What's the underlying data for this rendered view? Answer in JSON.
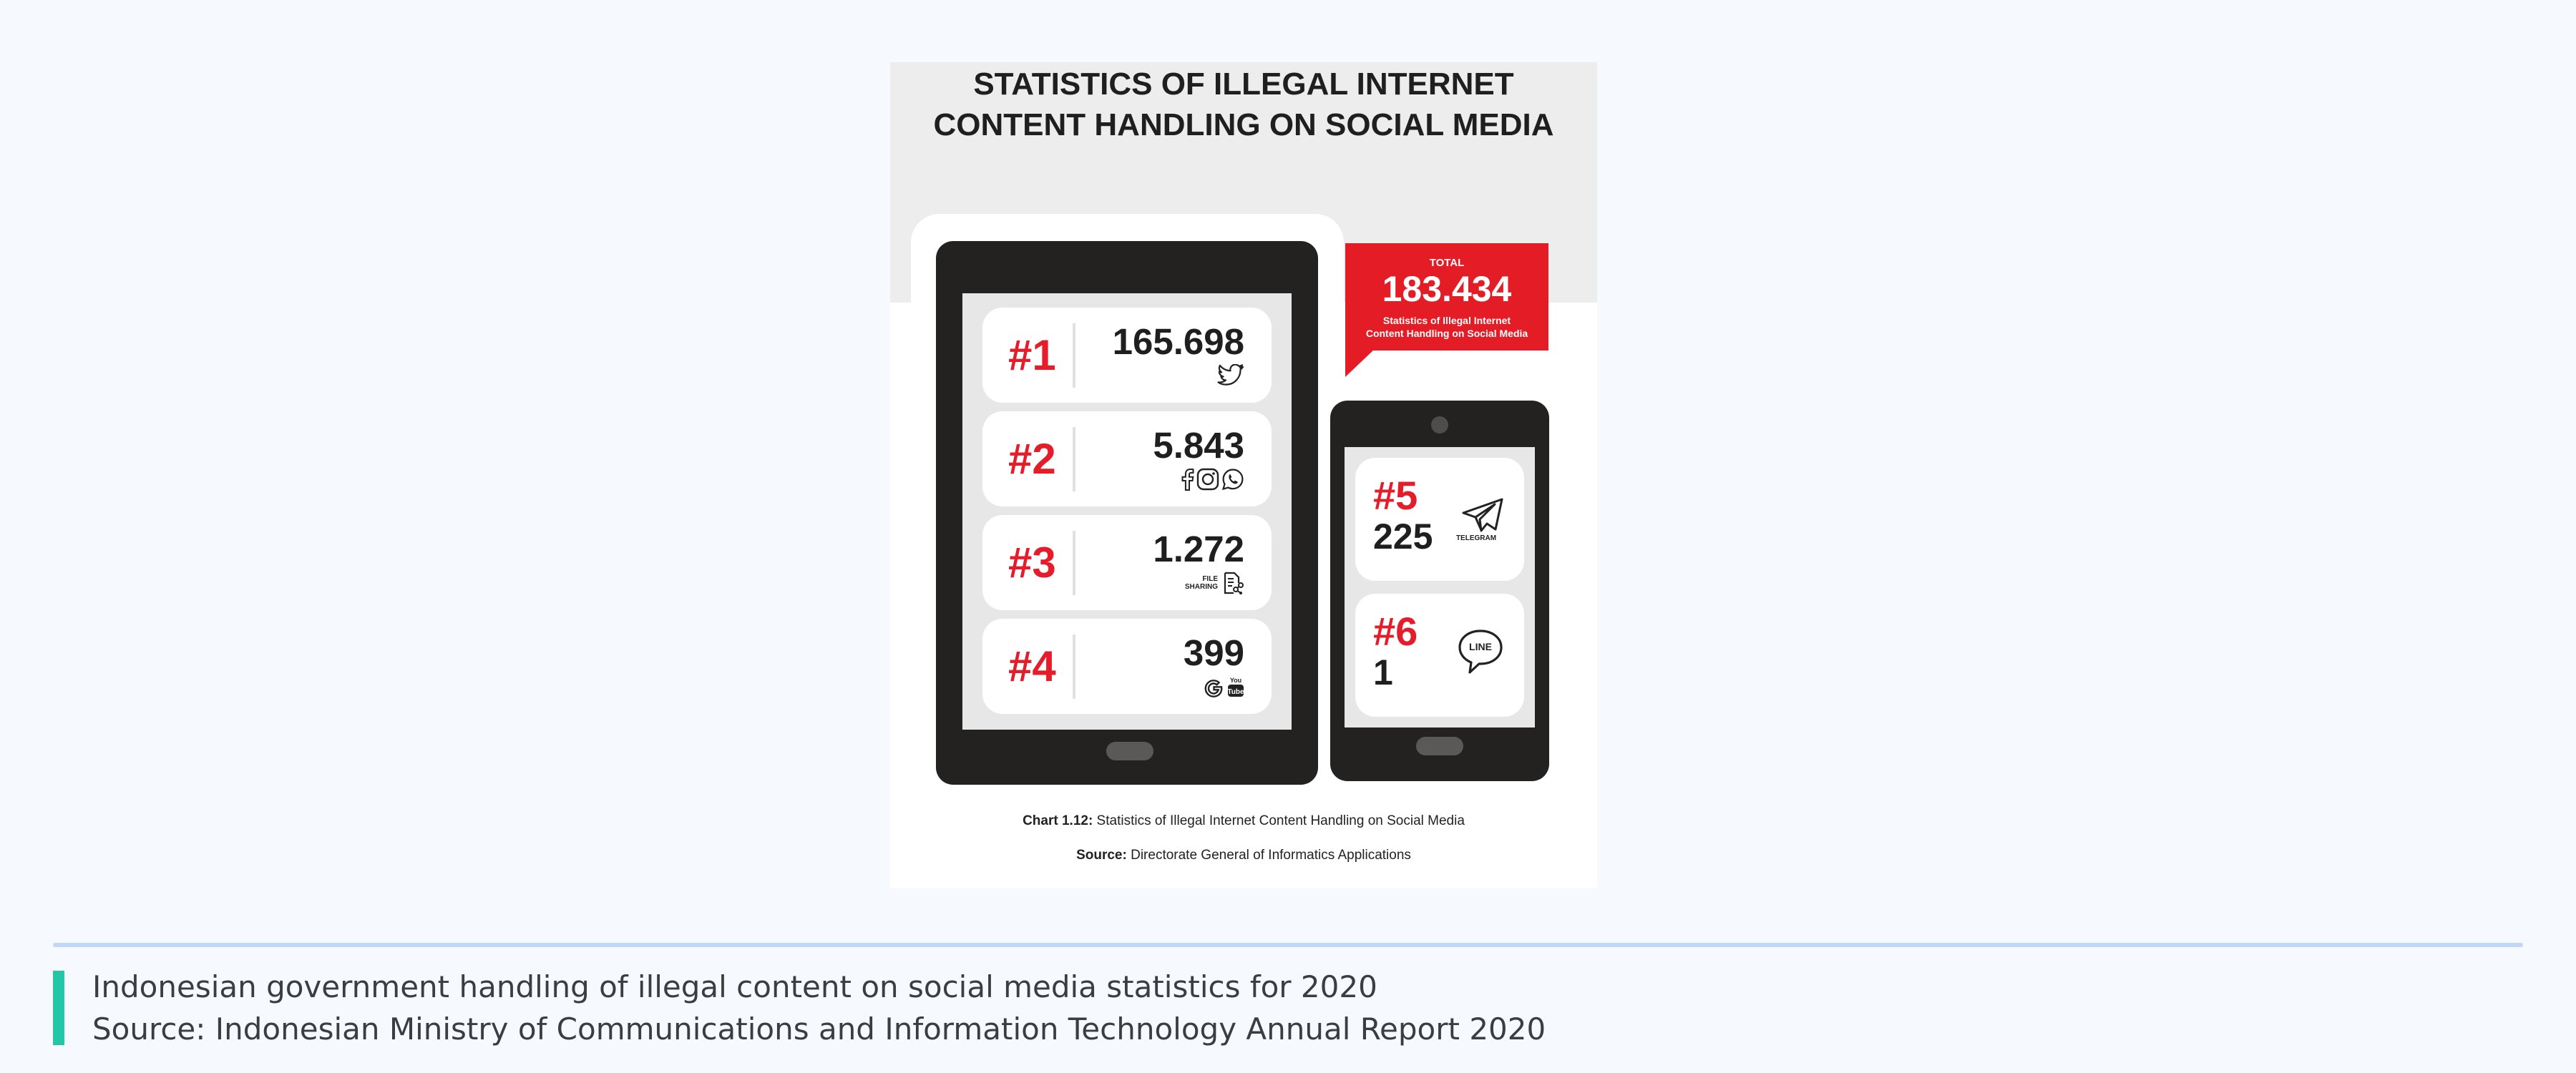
{
  "infographic": {
    "title": "STATISTICS OF ILLEGAL INTERNET\nCONTENT HANDLING ON SOCIAL MEDIA",
    "total": {
      "label": "TOTAL",
      "value": "183.434",
      "description": "Statistics of Illegal Internet\nContent Handling on Social Media"
    },
    "rankings": [
      {
        "rank": "#1",
        "value": "165.698",
        "icons": [
          "twitter-icon"
        ]
      },
      {
        "rank": "#2",
        "value": "5.843",
        "icons": [
          "facebook-icon",
          "instagram-icon",
          "whatsapp-icon"
        ]
      },
      {
        "rank": "#3",
        "value": "1.272",
        "icons_label": "FILE\nSHARING",
        "icons": [
          "file-sharing-icon"
        ]
      },
      {
        "rank": "#4",
        "value": "399",
        "icons": [
          "google-icon",
          "youtube-icon"
        ]
      },
      {
        "rank": "#5",
        "value": "225",
        "icons_label": "TELEGRAM",
        "icons": [
          "telegram-icon"
        ]
      },
      {
        "rank": "#6",
        "value": "1",
        "icons_label": "LINE",
        "icons": [
          "line-icon"
        ]
      }
    ],
    "caption": {
      "chart_label": "Chart 1.12:",
      "chart_text": " Statistics of Illegal Internet Content Handling on Social Media",
      "source_label": "Source:",
      "source_text": " Directorate General of Informatics Applications"
    },
    "colors": {
      "accent": "#e31c25",
      "device": "#232221",
      "background": "#ededed"
    }
  },
  "footer": {
    "description": "Indonesian government handling of illegal content on social media statistics for 2020",
    "source": "Source: Indonesian Ministry of Communications and Information Technology Annual Report 2020",
    "accent_color": "#21c7a6"
  }
}
